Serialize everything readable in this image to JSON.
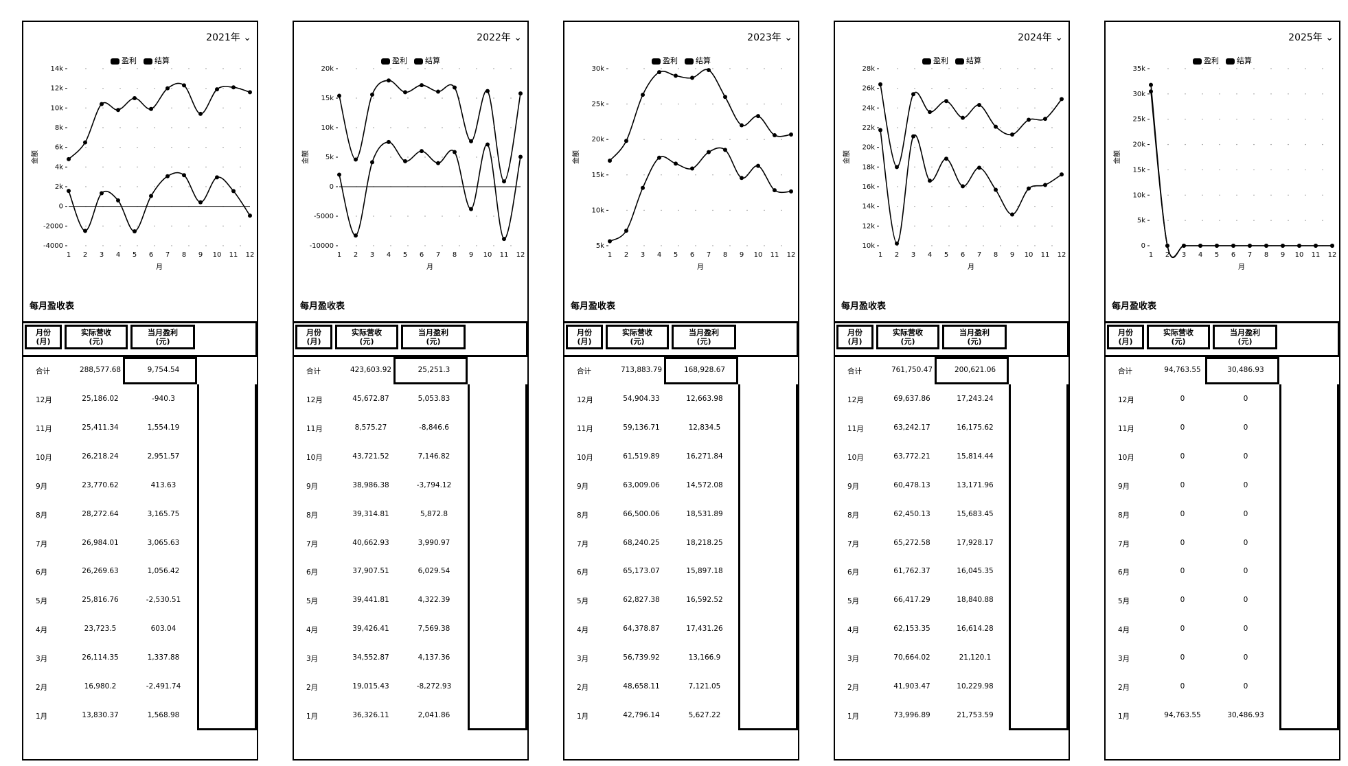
{
  "legend": {
    "profit": "盈利",
    "settle": "结算"
  },
  "axes": {
    "xlabel": "月",
    "ylabel": "金额"
  },
  "table": {
    "title": "每月盈收表",
    "headers": {
      "month": "月份\n(月)",
      "revenue": "实际营收\n(元)",
      "profit": "当月盈利\n(元)"
    },
    "total_label": "合计",
    "month_labels": [
      "12月",
      "11月",
      "10月",
      "9月",
      "8月",
      "7月",
      "6月",
      "5月",
      "4月",
      "3月",
      "2月",
      "1月"
    ]
  },
  "chart_data": [
    {
      "type": "line",
      "year_label": "2021年",
      "x": [
        1,
        2,
        3,
        4,
        5,
        6,
        7,
        8,
        9,
        10,
        11,
        12
      ],
      "ylim": [
        -4000,
        14000
      ],
      "yticks": [
        -4000,
        -2000,
        0,
        2000,
        4000,
        6000,
        8000,
        10000,
        12000,
        14000
      ],
      "ytick_labels": [
        "-4000",
        "-2000",
        "0",
        "2k",
        "4k",
        "6k",
        "8k",
        "10k",
        "12k",
        "14k"
      ],
      "series": [
        {
          "name": "盈利",
          "values": [
            4800,
            6500,
            10400,
            9800,
            11000,
            9900,
            12000,
            12300,
            9400,
            11900,
            12100,
            11600
          ]
        },
        {
          "name": "结算",
          "values": [
            1569,
            -2492,
            1338,
            603,
            -2531,
            1056,
            3066,
            3166,
            414,
            2952,
            1554,
            -940
          ]
        }
      ],
      "table": {
        "total_revenue": "288,577.68",
        "total_profit": "9,754.54",
        "revenue": [
          "25,186.02",
          "25,411.34",
          "26,218.24",
          "23,770.62",
          "28,272.64",
          "26,984.01",
          "26,269.63",
          "25,816.76",
          "23,723.5",
          "26,114.35",
          "16,980.2",
          "13,830.37"
        ],
        "profit": [
          "-940.3",
          "1,554.19",
          "2,951.57",
          "413.63",
          "3,165.75",
          "3,065.63",
          "1,056.42",
          "-2,530.51",
          "603.04",
          "1,337.88",
          "-2,491.74",
          "1,568.98"
        ]
      }
    },
    {
      "type": "line",
      "year_label": "2022年",
      "x": [
        1,
        2,
        3,
        4,
        5,
        6,
        7,
        8,
        9,
        10,
        11,
        12
      ],
      "ylim": [
        -10000,
        20000
      ],
      "yticks": [
        -10000,
        -5000,
        0,
        5000,
        10000,
        15000,
        20000
      ],
      "ytick_labels": [
        "-10000",
        "-5000",
        "0",
        "5k",
        "10k",
        "15k",
        "20k"
      ],
      "series": [
        {
          "name": "盈利",
          "values": [
            15400,
            4600,
            15600,
            18000,
            16000,
            17200,
            16100,
            16800,
            7700,
            16200,
            900,
            15800
          ]
        },
        {
          "name": "结算",
          "values": [
            2042,
            -8273,
            4137,
            7569,
            4322,
            6030,
            3991,
            5873,
            -3794,
            7147,
            -8847,
            5054
          ]
        }
      ],
      "table": {
        "total_revenue": "423,603.92",
        "total_profit": "25,251.3",
        "revenue": [
          "45,672.87",
          "8,575.27",
          "43,721.52",
          "38,986.38",
          "39,314.81",
          "40,662.93",
          "37,907.51",
          "39,441.81",
          "39,426.41",
          "34,552.87",
          "19,015.43",
          "36,326.11"
        ],
        "profit": [
          "5,053.83",
          "-8,846.6",
          "7,146.82",
          "-3,794.12",
          "5,872.8",
          "3,990.97",
          "6,029.54",
          "4,322.39",
          "7,569.38",
          "4,137.36",
          "-8,272.93",
          "2,041.86"
        ]
      }
    },
    {
      "type": "line",
      "year_label": "2023年",
      "x": [
        1,
        2,
        3,
        4,
        5,
        6,
        7,
        8,
        9,
        10,
        11,
        12
      ],
      "ylim": [
        5000,
        30000
      ],
      "yticks": [
        5000,
        10000,
        15000,
        20000,
        25000,
        30000
      ],
      "ytick_labels": [
        "5k",
        "10k",
        "15k",
        "20k",
        "25k",
        "30k"
      ],
      "series": [
        {
          "name": "盈利",
          "values": [
            17000,
            19800,
            26300,
            29500,
            29000,
            28700,
            29800,
            26000,
            22000,
            23300,
            20600,
            20700
          ]
        },
        {
          "name": "结算",
          "values": [
            5627,
            7121,
            13167,
            17431,
            16593,
            15897,
            18218,
            18532,
            14572,
            16272,
            12835,
            12664
          ]
        }
      ],
      "table": {
        "total_revenue": "713,883.79",
        "total_profit": "168,928.67",
        "revenue": [
          "54,904.33",
          "59,136.71",
          "61,519.89",
          "63,009.06",
          "66,500.06",
          "68,240.25",
          "65,173.07",
          "62,827.38",
          "64,378.87",
          "56,739.92",
          "48,658.11",
          "42,796.14"
        ],
        "profit": [
          "12,663.98",
          "12,834.5",
          "16,271.84",
          "14,572.08",
          "18,531.89",
          "18,218.25",
          "15,897.18",
          "16,592.52",
          "17,431.26",
          "13,166.9",
          "7,121.05",
          "5,627.22"
        ]
      }
    },
    {
      "type": "line",
      "year_label": "2024年",
      "x": [
        1,
        2,
        3,
        4,
        5,
        6,
        7,
        8,
        9,
        10,
        11,
        12
      ],
      "ylim": [
        10000,
        28000
      ],
      "yticks": [
        10000,
        12000,
        14000,
        16000,
        18000,
        20000,
        22000,
        24000,
        26000,
        28000
      ],
      "ytick_labels": [
        "10k",
        "12k",
        "14k",
        "16k",
        "18k",
        "20k",
        "22k",
        "24k",
        "26k",
        "28k"
      ],
      "series": [
        {
          "name": "盈利",
          "values": [
            26400,
            18000,
            25400,
            23600,
            24700,
            23000,
            24300,
            22100,
            21300,
            22800,
            22900,
            24900
          ]
        },
        {
          "name": "结算",
          "values": [
            21754,
            10230,
            21120,
            16614,
            18841,
            16045,
            17928,
            15683,
            13172,
            15814,
            16176,
            17243
          ]
        }
      ],
      "table": {
        "total_revenue": "761,750.47",
        "total_profit": "200,621.06",
        "revenue": [
          "69,637.86",
          "63,242.17",
          "63,772.21",
          "60,478.13",
          "62,450.13",
          "65,272.58",
          "61,762.37",
          "66,417.29",
          "62,153.35",
          "70,664.02",
          "41,903.47",
          "73,996.89"
        ],
        "profit": [
          "17,243.24",
          "16,175.62",
          "15,814.44",
          "13,171.96",
          "15,683.45",
          "17,928.17",
          "16,045.35",
          "18,840.88",
          "16,614.28",
          "21,120.1",
          "10,229.98",
          "21,753.59"
        ]
      }
    },
    {
      "type": "line",
      "year_label": "2025年",
      "x": [
        1,
        2,
        3,
        4,
        5,
        6,
        7,
        8,
        9,
        10,
        11,
        12
      ],
      "ylim": [
        0,
        35000
      ],
      "yticks": [
        0,
        5000,
        10000,
        15000,
        20000,
        25000,
        30000,
        35000
      ],
      "ytick_labels": [
        "0",
        "5k",
        "10k",
        "15k",
        "20k",
        "25k",
        "30k",
        "35k"
      ],
      "series": [
        {
          "name": "盈利",
          "values": [
            31800,
            0,
            0,
            0,
            0,
            0,
            0,
            0,
            0,
            0,
            0,
            0
          ]
        },
        {
          "name": "结算",
          "values": [
            30487,
            0,
            0,
            0,
            0,
            0,
            0,
            0,
            0,
            0,
            0,
            0
          ]
        }
      ],
      "table": {
        "total_revenue": "94,763.55",
        "total_profit": "30,486.93",
        "revenue": [
          "0",
          "0",
          "0",
          "0",
          "0",
          "0",
          "0",
          "0",
          "0",
          "0",
          "0",
          "94,763.55"
        ],
        "profit": [
          "0",
          "0",
          "0",
          "0",
          "0",
          "0",
          "0",
          "0",
          "0",
          "0",
          "0",
          "30,486.93"
        ]
      }
    }
  ]
}
